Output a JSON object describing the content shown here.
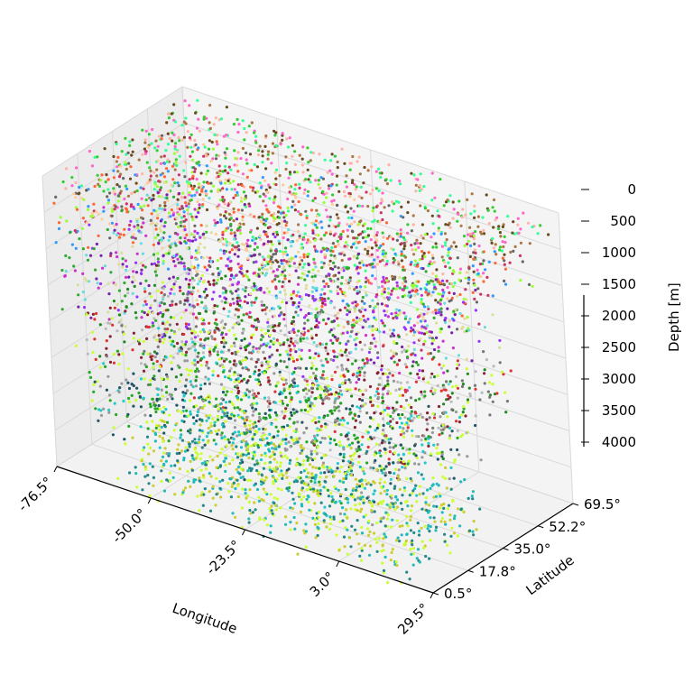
{
  "chart_data": {
    "type": "scatter",
    "projection": "3d",
    "title": "",
    "xlabel": "Longitude",
    "ylabel": "Latitude",
    "zlabel": "Depth [m]",
    "xlim": [
      -76.5,
      29.5
    ],
    "ylim": [
      0.5,
      69.5
    ],
    "zlim": [
      0,
      4000
    ],
    "z_inverted": true,
    "x_ticks": [
      "-76.5°",
      "-50.0°",
      "-23.5°",
      "3.0°",
      "29.5°"
    ],
    "y_ticks": [
      "0.5°",
      "17.8°",
      "35.0°",
      "52.2°",
      "69.5°"
    ],
    "z_ticks": [
      "0",
      "500",
      "1000",
      "1500",
      "2000",
      "2500",
      "3000",
      "3500",
      "4000"
    ],
    "grid": true,
    "legend": "none",
    "colors": {
      "pane": "#f2f2f2",
      "grid": "#d9d9d9",
      "coastline": "#000000"
    },
    "series": [
      {
        "depth_range": [
          0,
          300
        ],
        "colors": [
          "#6b4a1f",
          "#ff66cc",
          "#33ff99",
          "#ffb3a6",
          "#aa7744",
          "#33cc33"
        ],
        "lon_range": [
          -76,
          29
        ],
        "lat_range": [
          5,
          69
        ]
      },
      {
        "depth_range": [
          300,
          900
        ],
        "colors": [
          "#99ff33",
          "#cc3366",
          "#ff6633",
          "#3399ff",
          "#666666",
          "#ffcc99"
        ],
        "lon_range": [
          -76,
          29
        ],
        "lat_range": [
          0.5,
          60
        ]
      },
      {
        "depth_range": [
          900,
          1800
        ],
        "colors": [
          "#9933ff",
          "#7722aa",
          "#66dddd",
          "#dddd99",
          "#33aa33",
          "#cc33cc"
        ],
        "lon_range": [
          -76,
          20
        ],
        "lat_range": [
          0.5,
          55
        ]
      },
      {
        "depth_range": [
          1800,
          2600
        ],
        "colors": [
          "#882233",
          "#bbbbbb",
          "#228822",
          "#ccff33",
          "#dd3333",
          "#777777"
        ],
        "lon_range": [
          -70,
          25
        ],
        "lat_range": [
          0.5,
          55
        ]
      },
      {
        "depth_range": [
          2600,
          3400
        ],
        "colors": [
          "#22cccc",
          "#225566",
          "#999999",
          "#ccff33",
          "#22aa22"
        ],
        "lon_range": [
          -70,
          15
        ],
        "lat_range": [
          0.5,
          55
        ]
      },
      {
        "depth_range": [
          3400,
          4100
        ],
        "colors": [
          "#cccc33",
          "#22bbbb",
          "#228888",
          "#ccff33"
        ],
        "lon_range": [
          -60,
          20
        ],
        "lat_range": [
          0.5,
          45
        ]
      }
    ]
  }
}
